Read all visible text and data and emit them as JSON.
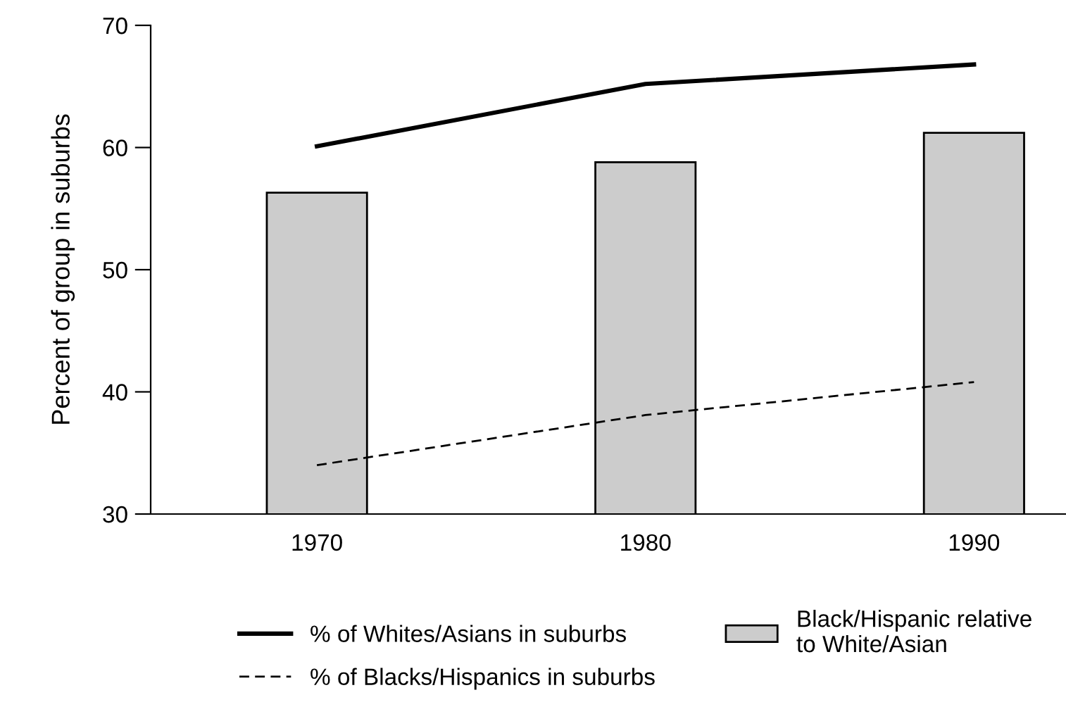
{
  "chart_data": {
    "type": "bar",
    "ylabel": "Percent of group in suburbs",
    "categories": [
      "1970",
      "1980",
      "1990"
    ],
    "series": [
      {
        "name": "% of Whites/Asians in suburbs",
        "type": "line",
        "color": "#000000",
        "line_style": "solid",
        "values": [
          60.1,
          65.2,
          66.8
        ]
      },
      {
        "name": "% of Blacks/Hispanics in suburbs",
        "type": "line",
        "color": "#000000",
        "line_style": "dashed",
        "values": [
          34.0,
          38.1,
          40.8
        ]
      },
      {
        "name": "Black/Hispanic relative\nto White/Asian",
        "color": "#cccccc",
        "values": [
          56.3,
          58.8,
          61.2
        ]
      }
    ],
    "ylim": [
      30,
      70
    ],
    "yticks": [
      30,
      40,
      50,
      60,
      70
    ],
    "grid": false,
    "legend": "bottom",
    "marker": "none"
  }
}
